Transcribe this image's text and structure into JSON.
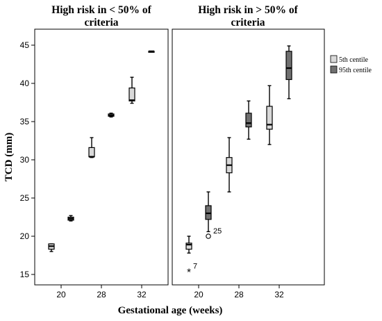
{
  "chart_data": {
    "type": "boxplot",
    "panels": [
      {
        "title": "High risk in < 50% of criteria"
      },
      {
        "title": "High risk in > 50% of criteria"
      }
    ],
    "categories": [
      "20",
      "28",
      "32"
    ],
    "xlabel": "Gestational age (weeks)",
    "ylabel": "TCD (mm)",
    "ylim": [
      13,
      47
    ],
    "yticks": [
      15,
      20,
      25,
      30,
      35,
      40,
      45
    ],
    "legend": {
      "position": "right",
      "entries": [
        {
          "label": "5th centile",
          "color": "#d9d9d9"
        },
        {
          "label": "95th centile",
          "color": "#707070"
        }
      ]
    },
    "boxes": [
      {
        "panel": 0,
        "category": "20",
        "series": "5th centile",
        "min": 18.0,
        "q1": 18.3,
        "median": 18.7,
        "q3": 19.0,
        "max": 19.0
      },
      {
        "panel": 0,
        "category": "20",
        "series": "95th centile",
        "min": 22.0,
        "q1": 22.1,
        "median": 22.3,
        "q3": 22.5,
        "max": 22.7
      },
      {
        "panel": 0,
        "category": "28",
        "series": "5th centile",
        "min": 30.3,
        "q1": 30.4,
        "median": 30.4,
        "q3": 31.6,
        "max": 32.9
      },
      {
        "panel": 0,
        "category": "28",
        "series": "95th centile",
        "min": 35.6,
        "q1": 35.7,
        "median": 35.8,
        "q3": 36.0,
        "max": 36.1
      },
      {
        "panel": 0,
        "category": "32",
        "series": "5th centile",
        "min": 37.4,
        "q1": 37.7,
        "median": 37.8,
        "q3": 39.4,
        "max": 40.8
      },
      {
        "panel": 0,
        "category": "32",
        "series": "95th centile",
        "min": 44.2,
        "q1": 44.2,
        "median": 44.2,
        "q3": 44.2,
        "max": 44.2
      },
      {
        "panel": 1,
        "category": "20",
        "series": "5th centile",
        "min": 17.8,
        "q1": 18.3,
        "median": 18.9,
        "q3": 19.1,
        "max": 20.0
      },
      {
        "panel": 1,
        "category": "20",
        "series": "95th centile",
        "min": 20.6,
        "q1": 22.2,
        "median": 23.0,
        "q3": 24.0,
        "max": 25.8
      },
      {
        "panel": 1,
        "category": "28",
        "series": "5th centile",
        "min": 25.8,
        "q1": 28.3,
        "median": 29.3,
        "q3": 30.3,
        "max": 32.9
      },
      {
        "panel": 1,
        "category": "28",
        "series": "95th centile",
        "min": 32.7,
        "q1": 34.3,
        "median": 34.8,
        "q3": 36.1,
        "max": 37.7
      },
      {
        "panel": 1,
        "category": "32",
        "series": "5th centile",
        "min": 32.0,
        "q1": 34.0,
        "median": 34.6,
        "q3": 37.0,
        "max": 39.7
      },
      {
        "panel": 1,
        "category": "32",
        "series": "95th centile",
        "min": 38.0,
        "q1": 40.5,
        "median": 42.0,
        "q3": 44.2,
        "max": 44.9
      }
    ],
    "outliers": [
      {
        "panel": 1,
        "category": "20",
        "series": "95th centile",
        "value": 20.0,
        "symbol": "circle",
        "label": "25"
      },
      {
        "panel": 1,
        "category": "20",
        "series": "5th centile",
        "value": 15.5,
        "symbol": "star",
        "label": "7"
      }
    ]
  }
}
